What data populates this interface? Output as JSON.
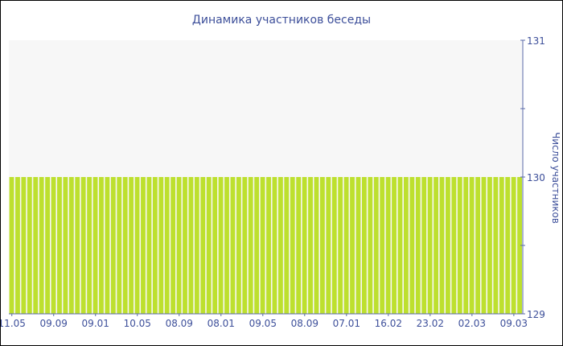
{
  "chart_data": {
    "type": "bar",
    "title": "Динамика участников беседы",
    "ylabel": "Число участников",
    "xlabel": "",
    "ylim": [
      129,
      131
    ],
    "y_ticks": [
      129,
      130,
      131
    ],
    "y_axis_side": "right",
    "grid": false,
    "tick_labels": [
      "11.05",
      "09.09",
      "09.01",
      "10.05",
      "08.09",
      "08.01",
      "09.05",
      "08.09",
      "07.01",
      "16.02",
      "23.02",
      "02.03",
      "09.03"
    ],
    "tick_every_n_bars": 7,
    "values": [
      130,
      130,
      130,
      130,
      130,
      130,
      130,
      130,
      130,
      130,
      130,
      130,
      130,
      130,
      130,
      130,
      130,
      130,
      130,
      130,
      130,
      130,
      130,
      130,
      130,
      130,
      130,
      130,
      130,
      130,
      130,
      130,
      130,
      130,
      130,
      130,
      130,
      130,
      130,
      130,
      130,
      130,
      130,
      130,
      130,
      130,
      130,
      130,
      130,
      130,
      130,
      130,
      130,
      130,
      130,
      130,
      130,
      130,
      130,
      130,
      130,
      130,
      130,
      130,
      130,
      130,
      130,
      130,
      130,
      130,
      130,
      130,
      130,
      130,
      130,
      130,
      130,
      130,
      130,
      130,
      130,
      130,
      130,
      130,
      130,
      130
    ],
    "colors": {
      "bar": "#bde02e",
      "plot_bg": "#f7f7f7",
      "axis": "#5a6aa8",
      "text": "#3d4f9a"
    }
  }
}
